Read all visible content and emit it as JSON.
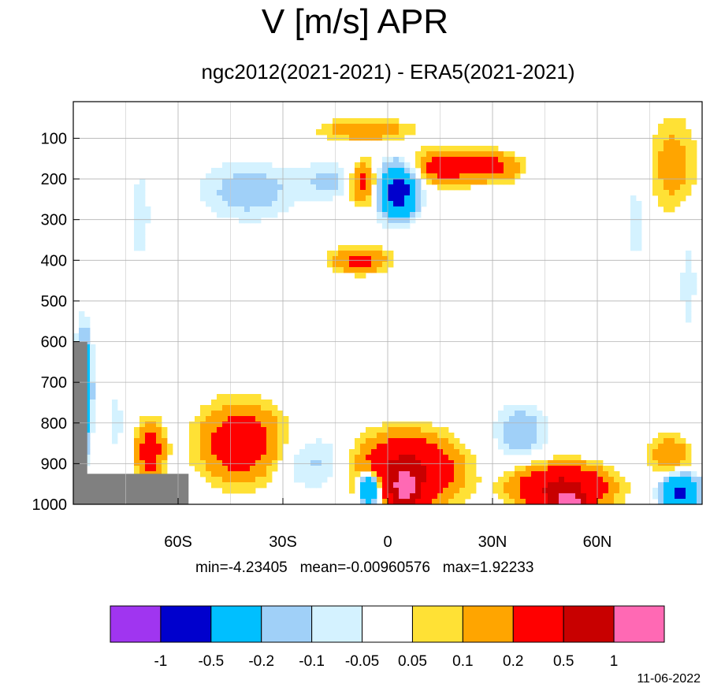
{
  "title": "V [m/s] APR",
  "subtitle": "ngc2012(2021-2021) - ERA5(2021-2021)",
  "stats": {
    "min": "min=-4.23405",
    "mean": "mean=-0.00960576",
    "max": "max=1.92233"
  },
  "date": "11-06-2022",
  "chart_data": {
    "type": "heatmap",
    "title": "V [m/s] APR",
    "subtitle": "ngc2012(2021-2021) - ERA5(2021-2021)",
    "xlabel": "",
    "ylabel": "",
    "x_range": [
      -90,
      90
    ],
    "y_range": [
      1000,
      10
    ],
    "x_ticks": [
      {
        "value": -60,
        "label": "60S"
      },
      {
        "value": -30,
        "label": "30S"
      },
      {
        "value": 0,
        "label": "0"
      },
      {
        "value": 30,
        "label": "30N"
      },
      {
        "value": 60,
        "label": "60N"
      }
    ],
    "y_ticks": [
      {
        "value": 100,
        "label": "100"
      },
      {
        "value": 200,
        "label": "200"
      },
      {
        "value": 300,
        "label": "300"
      },
      {
        "value": 400,
        "label": "400"
      },
      {
        "value": 500,
        "label": "500"
      },
      {
        "value": 600,
        "label": "600"
      },
      {
        "value": 700,
        "label": "700"
      },
      {
        "value": 800,
        "label": "800"
      },
      {
        "value": 900,
        "label": "900"
      },
      {
        "value": 1000,
        "label": "1000"
      }
    ],
    "grid": true,
    "levels": [
      {
        "label": "-1",
        "value": -1
      },
      {
        "label": "-0.5",
        "value": -0.5
      },
      {
        "label": "-0.2",
        "value": -0.2
      },
      {
        "label": "-0.1",
        "value": -0.1
      },
      {
        "label": "-0.05",
        "value": -0.05
      },
      {
        "label": "0.05",
        "value": 0.05
      },
      {
        "label": "0.1",
        "value": 0.1
      },
      {
        "label": "0.2",
        "value": 0.2
      },
      {
        "label": "0.5",
        "value": 0.5
      },
      {
        "label": "1",
        "value": 1
      }
    ],
    "colors": [
      "#a035f0",
      "#0000cd",
      "#00bfff",
      "#a0d0f8",
      "#d4f2ff",
      "#ffffff",
      "#ffe135",
      "#ffa500",
      "#ff0000",
      "#c80000",
      "#ff69b4"
    ],
    "missing_color": "#808080",
    "missing_regions": [
      {
        "lon": [
          -90,
          -86
        ],
        "p": [
          600,
          1000
        ]
      },
      {
        "lon": [
          -90,
          -57
        ],
        "p": [
          925,
          1000
        ]
      }
    ],
    "features": [
      {
        "lon": -42,
        "p": 850,
        "dlon": 11,
        "dp": 90,
        "value": 0.35
      },
      {
        "lon": -68,
        "p": 870,
        "dlon": 4,
        "dp": 70,
        "value": 0.3
      },
      {
        "lon": -8,
        "p": 400,
        "dlon": 8,
        "dp": 30,
        "value": 0.25
      },
      {
        "lon": -7,
        "p": 210,
        "dlon": 4,
        "dp": 50,
        "value": 0.3
      },
      {
        "lon": 3,
        "p": 230,
        "dlon": 5,
        "dp": 60,
        "value": -0.7
      },
      {
        "lon": -16,
        "p": 205,
        "dlon": 10,
        "dp": 45,
        "value": -0.12
      },
      {
        "lon": -40,
        "p": 230,
        "dlon": 13,
        "dp": 70,
        "value": -0.15
      },
      {
        "lon": 17,
        "p": 170,
        "dlon": 10,
        "dp": 40,
        "value": 0.3
      },
      {
        "lon": 31,
        "p": 170,
        "dlon": 7,
        "dp": 35,
        "value": 0.22
      },
      {
        "lon": -6,
        "p": 80,
        "dlon": 12,
        "dp": 25,
        "value": 0.2
      },
      {
        "lon": 5,
        "p": 920,
        "dlon": 13,
        "dp": 80,
        "value": 0.6
      },
      {
        "lon": 5,
        "p": 960,
        "dlon": 3,
        "dp": 40,
        "value": 1.3
      },
      {
        "lon": -5,
        "p": 960,
        "dlon": 3,
        "dp": 40,
        "value": -0.7
      },
      {
        "lon": -20,
        "p": 900,
        "dlon": 12,
        "dp": 70,
        "value": -0.12
      },
      {
        "lon": 50,
        "p": 960,
        "dlon": 12,
        "dp": 50,
        "value": 0.6
      },
      {
        "lon": 52,
        "p": 990,
        "dlon": 4,
        "dp": 15,
        "value": 1.3
      },
      {
        "lon": 38,
        "p": 820,
        "dlon": 7,
        "dp": 60,
        "value": -0.18
      },
      {
        "lon": 84,
        "p": 970,
        "dlon": 5,
        "dp": 40,
        "value": -0.6
      },
      {
        "lon": 81,
        "p": 880,
        "dlon": 6,
        "dp": 50,
        "value": 0.18
      },
      {
        "lon": 82,
        "p": 170,
        "dlon": 7,
        "dp": 120,
        "value": 0.15
      },
      {
        "lon": 86,
        "p": 450,
        "dlon": 4,
        "dp": 250,
        "value": -0.06
      },
      {
        "lon": 71,
        "p": 300,
        "dlon": 4,
        "dp": 150,
        "value": -0.07
      },
      {
        "lon": -71,
        "p": 290,
        "dlon": 4,
        "dp": 150,
        "value": -0.07
      },
      {
        "lon": -87,
        "p": 720,
        "dlon": 2,
        "dp": 130,
        "value": -0.5
      },
      {
        "lon": -78,
        "p": 800,
        "dlon": 3,
        "dp": 100,
        "value": -0.07
      }
    ]
  },
  "colorbar": {
    "colors": [
      "#a035f0",
      "#0000cd",
      "#00bfff",
      "#a0d0f8",
      "#d4f2ff",
      "#ffffff",
      "#ffe135",
      "#ffa500",
      "#ff0000",
      "#c80000",
      "#ff69b4"
    ],
    "labels": [
      "-1",
      "-0.5",
      "-0.2",
      "-0.1",
      "-0.05",
      "0.05",
      "0.1",
      "0.2",
      "0.5",
      "1"
    ]
  }
}
